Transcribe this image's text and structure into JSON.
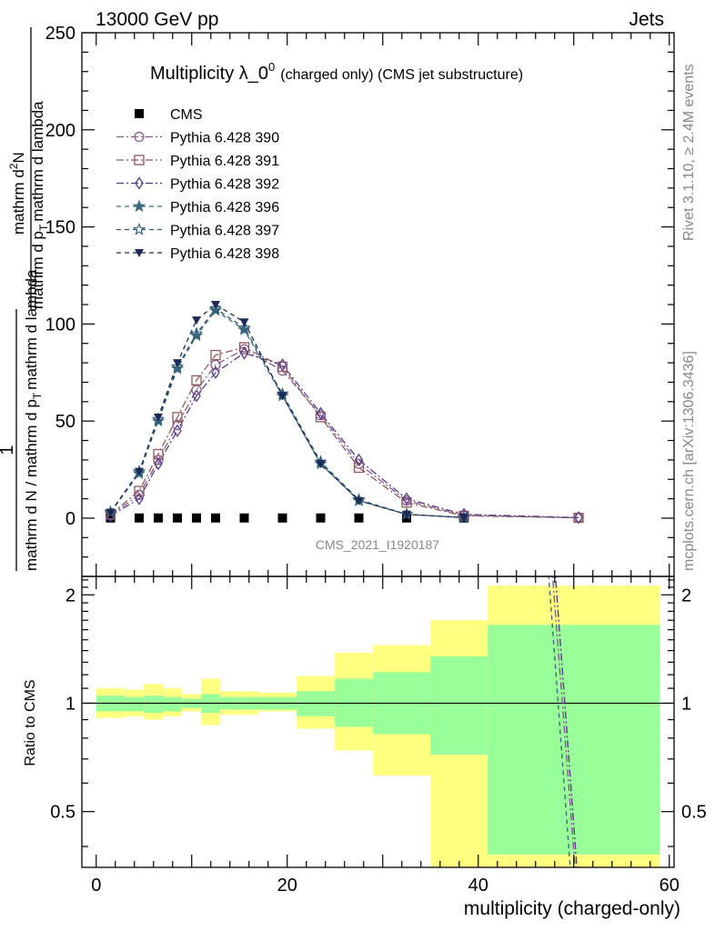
{
  "header": {
    "left": "13000 GeV pp",
    "right": "Jets"
  },
  "side_texts": {
    "rivet": "Rivet 3.1.10, ≥ 2.4M events",
    "mcplots": "mcplots.cern.ch [arXiv:1306.3436]"
  },
  "chart_data": [
    {
      "type": "line",
      "title": "Multiplicity λ_0",
      "title_superscript": "0",
      "subtitle": "(charged only) (CMS jet substructure)",
      "ylabel": {
        "numerator": "1",
        "denominator": "mathrm d N / mathrm d p",
        "denominator_sub": "T",
        "denominator_tail": "mathrm d lambda",
        "numerator2": "mathrm d",
        "numerator2_sup": "2",
        "numerator2_tail": "N",
        "denominator2": "mathrm d p",
        "denominator2_sub": "T",
        "denominator2_tail": "mathrm d lambda"
      },
      "ylabel_full": "1 / (mathrm d N / mathrm d p_T mathrm d lambda) · mathrm d²N / (mathrm d p_T mathrm d lambda)",
      "xlim": [
        -1.5,
        60.5
      ],
      "ylim": [
        -30,
        250
      ],
      "yticks": [
        0,
        50,
        100,
        150,
        200,
        250
      ],
      "watermark": "CMS_2021_I1920187",
      "legend_position": "top-left",
      "series": [
        {
          "name": "CMS",
          "color": "#000000",
          "marker": "filled-square",
          "x": [
            1.5,
            4.5,
            6.5,
            8.5,
            10.5,
            12.5,
            15.5,
            19.5,
            23.5,
            27.5,
            32.5,
            38.5
          ],
          "y": [
            0.1,
            0.1,
            0.1,
            0.1,
            0.1,
            0.1,
            0.1,
            0.1,
            0.1,
            0.1,
            0.1,
            0.1
          ]
        },
        {
          "name": "Pythia 6.428 390",
          "color": "#8b5a8c",
          "marker": "open-circle",
          "dash": "8,3,2,3",
          "x": [
            1.5,
            4.5,
            6.5,
            8.5,
            10.5,
            12.5,
            15.5,
            19.5,
            23.5,
            27.5,
            32.5,
            38.5,
            50.5
          ],
          "y": [
            1.5,
            12,
            30,
            48,
            66,
            79,
            87,
            76,
            53,
            28,
            9,
            1.5,
            0.2
          ]
        },
        {
          "name": "Pythia 6.428 391",
          "color": "#8e5a5a",
          "marker": "open-square",
          "dash": "8,3,2,3",
          "x": [
            1.5,
            4.5,
            6.5,
            8.5,
            10.5,
            12.5,
            15.5,
            19.5,
            23.5,
            27.5,
            32.5,
            38.5,
            50.5
          ],
          "y": [
            2,
            14,
            33,
            52,
            71,
            84,
            88,
            78,
            52,
            26,
            8,
            1.2,
            0.2
          ]
        },
        {
          "name": "Pythia 6.428 392",
          "color": "#553d8a",
          "marker": "open-diamond",
          "dash": "8,3,2,3",
          "x": [
            1.5,
            4.5,
            6.5,
            8.5,
            10.5,
            12.5,
            15.5,
            19.5,
            23.5,
            27.5,
            32.5,
            38.5,
            50.5
          ],
          "y": [
            1.2,
            10,
            28,
            45,
            63,
            75,
            85,
            79,
            54,
            30,
            10,
            2,
            0.3
          ]
        },
        {
          "name": "Pythia 6.428 396",
          "color": "#3f6a80",
          "marker": "filled-star",
          "dash": "5,4",
          "x": [
            1.5,
            4.5,
            6.5,
            8.5,
            10.5,
            12.5,
            15.5,
            19.5,
            23.5,
            27.5,
            32.5,
            38.5
          ],
          "y": [
            3,
            23,
            50,
            77,
            94,
            107,
            97,
            63,
            28,
            9,
            2,
            0.3
          ]
        },
        {
          "name": "Pythia 6.428 397",
          "color": "#2f5a78",
          "marker": "open-star",
          "dash": "5,4",
          "x": [
            1.5,
            4.5,
            6.5,
            8.5,
            10.5,
            12.5,
            15.5,
            19.5,
            23.5,
            27.5,
            32.5,
            38.5
          ],
          "y": [
            3,
            24,
            51,
            78,
            95,
            108,
            98,
            64,
            29,
            9.5,
            2,
            0.3
          ]
        },
        {
          "name": "Pythia 6.428 398",
          "color": "#1c2a55",
          "marker": "filled-triangle-down",
          "dash": "5,4",
          "x": [
            1.5,
            4.5,
            6.5,
            8.5,
            10.5,
            12.5,
            15.5,
            19.5,
            23.5,
            27.5,
            32.5,
            38.5
          ],
          "y": [
            3,
            24,
            52,
            80,
            102,
            110,
            101,
            63,
            28,
            9,
            2,
            0.3
          ]
        }
      ]
    },
    {
      "type": "area",
      "ylabel": "Ratio to CMS",
      "xlabel": "multiplicity (charged-only)",
      "xlim": [
        -1.5,
        60.5
      ],
      "ylim": [
        0.35,
        2.25
      ],
      "yticks": [
        0.5,
        1,
        2
      ],
      "xticks": [
        0,
        20,
        40,
        60
      ],
      "reference_line": 1,
      "bins": [
        {
          "x0": 0,
          "x1": 3,
          "stat_lo": 0.95,
          "stat_hi": 1.05,
          "tot_lo": 0.91,
          "tot_hi": 1.1
        },
        {
          "x0": 3,
          "x1": 5,
          "stat_lo": 0.95,
          "stat_hi": 1.04,
          "tot_lo": 0.92,
          "tot_hi": 1.09
        },
        {
          "x0": 5,
          "x1": 7,
          "stat_lo": 0.94,
          "stat_hi": 1.05,
          "tot_lo": 0.9,
          "tot_hi": 1.13
        },
        {
          "x0": 7,
          "x1": 9,
          "stat_lo": 0.95,
          "stat_hi": 1.04,
          "tot_lo": 0.92,
          "tot_hi": 1.1
        },
        {
          "x0": 9,
          "x1": 11,
          "stat_lo": 0.97,
          "stat_hi": 1.03,
          "tot_lo": 0.95,
          "tot_hi": 1.06
        },
        {
          "x0": 11,
          "x1": 13,
          "stat_lo": 0.94,
          "stat_hi": 1.06,
          "tot_lo": 0.87,
          "tot_hi": 1.17
        },
        {
          "x0": 13,
          "x1": 17,
          "stat_lo": 0.96,
          "stat_hi": 1.04,
          "tot_lo": 0.93,
          "tot_hi": 1.08
        },
        {
          "x0": 17,
          "x1": 21,
          "stat_lo": 0.96,
          "stat_hi": 1.04,
          "tot_lo": 0.95,
          "tot_hi": 1.07
        },
        {
          "x0": 21,
          "x1": 25,
          "stat_lo": 0.92,
          "stat_hi": 1.08,
          "tot_lo": 0.85,
          "tot_hi": 1.19
        },
        {
          "x0": 25,
          "x1": 29,
          "stat_lo": 0.86,
          "stat_hi": 1.17,
          "tot_lo": 0.74,
          "tot_hi": 1.38
        },
        {
          "x0": 29,
          "x1": 35,
          "stat_lo": 0.82,
          "stat_hi": 1.22,
          "tot_lo": 0.63,
          "tot_hi": 1.45
        },
        {
          "x0": 35,
          "x1": 41,
          "stat_lo": 0.72,
          "stat_hi": 1.35,
          "tot_lo": 0.35,
          "tot_hi": 1.7
        },
        {
          "x0": 41,
          "x1": 59,
          "stat_lo": 0.38,
          "stat_hi": 1.65,
          "tot_lo": 0.35,
          "tot_hi": 2.12
        }
      ],
      "colors": {
        "stat": "#99ff99",
        "total": "#ffff80"
      },
      "ratio_lines": [
        {
          "name": "Pythia 6.428 390",
          "color": "#8b5a8c",
          "dash": "8,3,2,3",
          "x": [
            47.7,
            50.2
          ],
          "y": [
            2.4,
            0.33
          ]
        },
        {
          "name": "Pythia 6.428 392",
          "color": "#553d8a",
          "dash": "8,3,2,3",
          "x": [
            48.0,
            50.4
          ],
          "y": [
            2.4,
            0.33
          ]
        },
        {
          "name": "Pythia 6.428 396",
          "color": "#3f6a80",
          "dash": "5,4",
          "x": [
            47.3,
            49.7
          ],
          "y": [
            2.4,
            0.33
          ]
        }
      ]
    }
  ]
}
